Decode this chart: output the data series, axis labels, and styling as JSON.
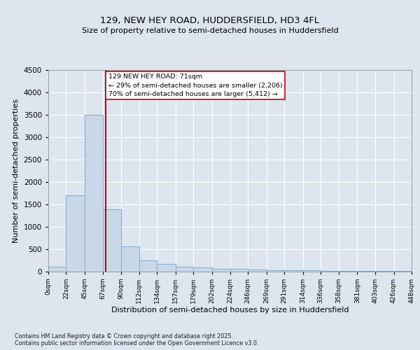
{
  "title_line1": "129, NEW HEY ROAD, HUDDERSFIELD, HD3 4FL",
  "title_line2": "Size of property relative to semi-detached houses in Huddersfield",
  "xlabel": "Distribution of semi-detached houses by size in Huddersfield",
  "ylabel": "Number of semi-detached properties",
  "footnote": "Contains HM Land Registry data © Crown copyright and database right 2025.\nContains public sector information licensed under the Open Government Licence v3.0.",
  "bin_edges": [
    0,
    22,
    45,
    67,
    90,
    112,
    134,
    157,
    179,
    202,
    224,
    246,
    269,
    291,
    314,
    336,
    358,
    381,
    403,
    426,
    448
  ],
  "bar_heights": [
    100,
    1700,
    3500,
    1380,
    550,
    250,
    170,
    100,
    80,
    60,
    55,
    40,
    30,
    25,
    20,
    15,
    10,
    5,
    5,
    5
  ],
  "bar_color": "#c8d8e8",
  "bar_edgecolor": "#7bafd4",
  "property_size": 71,
  "vline_color": "#cc0000",
  "annotation_text": "129 NEW HEY ROAD: 71sqm\n← 29% of semi-detached houses are smaller (2,206)\n70% of semi-detached houses are larger (5,412) →",
  "annotation_box_edgecolor": "#cc0000",
  "annotation_box_facecolor": "#ffffff",
  "ylim": [
    0,
    4500
  ],
  "yticks": [
    0,
    500,
    1000,
    1500,
    2000,
    2500,
    3000,
    3500,
    4000,
    4500
  ],
  "background_color": "#dde5ef",
  "plot_background": "#dde5ef",
  "tick_labels": [
    "0sqm",
    "22sqm",
    "45sqm",
    "67sqm",
    "90sqm",
    "112sqm",
    "134sqm",
    "157sqm",
    "179sqm",
    "202sqm",
    "224sqm",
    "246sqm",
    "269sqm",
    "291sqm",
    "314sqm",
    "336sqm",
    "358sqm",
    "381sqm",
    "403sqm",
    "426sqm",
    "448sqm"
  ]
}
